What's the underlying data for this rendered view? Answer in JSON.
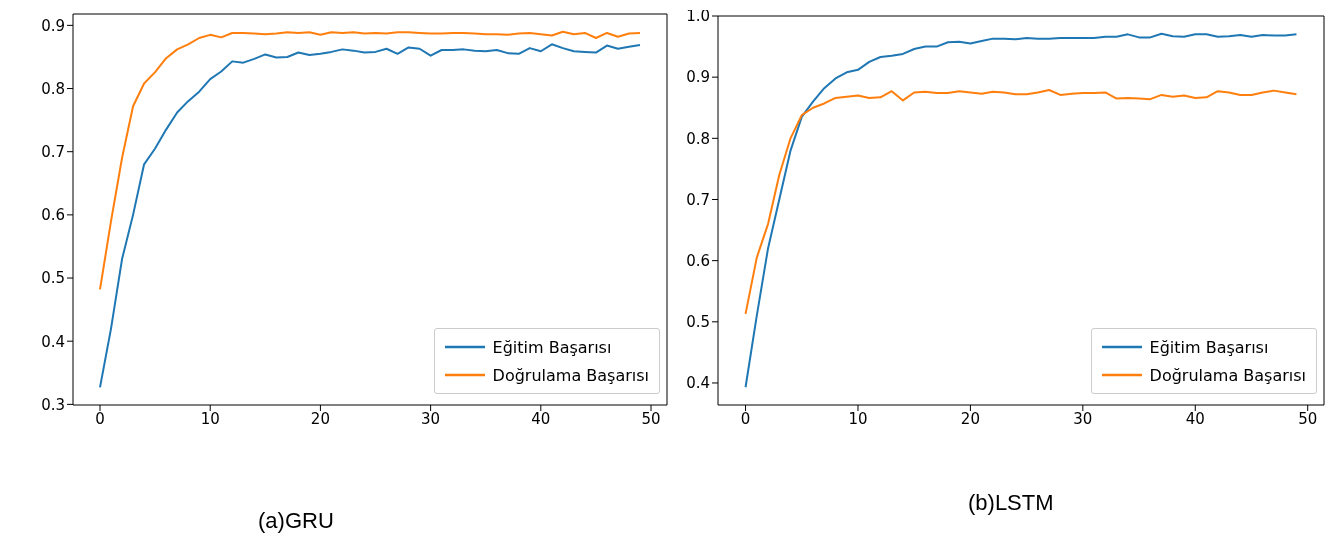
{
  "chart_data": [
    {
      "type": "line",
      "annotations": [
        "(a)GRU"
      ],
      "legend": "bottom right",
      "x": [
        0,
        1,
        2,
        3,
        4,
        5,
        6,
        7,
        8,
        9,
        10,
        11,
        12,
        13,
        14,
        15,
        16,
        17,
        18,
        19,
        20,
        21,
        22,
        23,
        24,
        25,
        26,
        27,
        28,
        29,
        30,
        31,
        32,
        33,
        34,
        35,
        36,
        37,
        38,
        39,
        40,
        41,
        42,
        43,
        44,
        45,
        46,
        47,
        48,
        49
      ],
      "xlim": [
        -2.45,
        51.45
      ],
      "xticks": [
        0,
        10,
        20,
        30,
        40,
        50
      ],
      "ylim": [
        0.299,
        0.918
      ],
      "yticks": [
        0.3,
        0.4,
        0.5,
        0.6,
        0.7,
        0.8,
        0.9
      ],
      "series": [
        {
          "name": "Eğitim Başarısı",
          "color": "#1f77b4",
          "values": [
            0.327,
            0.42,
            0.53,
            0.6,
            0.68,
            0.705,
            0.735,
            0.762,
            0.78,
            0.795,
            0.815,
            0.827,
            0.843,
            0.841,
            0.847,
            0.854,
            0.849,
            0.85,
            0.857,
            0.853,
            0.855,
            0.858,
            0.862,
            0.86,
            0.857,
            0.858,
            0.863,
            0.855,
            0.865,
            0.863,
            0.852,
            0.861,
            0.861,
            0.862,
            0.86,
            0.859,
            0.861,
            0.856,
            0.855,
            0.864,
            0.859,
            0.87,
            0.864,
            0.859,
            0.858,
            0.857,
            0.868,
            0.863,
            0.866,
            0.869
          ]
        },
        {
          "name": "Doğrulama Başarısı",
          "color": "#ff7f0e",
          "values": [
            0.482,
            0.59,
            0.69,
            0.772,
            0.808,
            0.826,
            0.848,
            0.862,
            0.87,
            0.88,
            0.885,
            0.881,
            0.888,
            0.888,
            0.887,
            0.886,
            0.887,
            0.889,
            0.888,
            0.889,
            0.885,
            0.889,
            0.888,
            0.889,
            0.887,
            0.888,
            0.887,
            0.889,
            0.889,
            0.888,
            0.887,
            0.887,
            0.888,
            0.888,
            0.887,
            0.886,
            0.886,
            0.885,
            0.887,
            0.888,
            0.886,
            0.884,
            0.89,
            0.886,
            0.888,
            0.88,
            0.888,
            0.882,
            0.887,
            0.888
          ]
        }
      ]
    },
    {
      "type": "line",
      "annotations": [
        "(b)LSTM"
      ],
      "legend": "bottom right",
      "x": [
        0,
        1,
        2,
        3,
        4,
        5,
        6,
        7,
        8,
        9,
        10,
        11,
        12,
        13,
        14,
        15,
        16,
        17,
        18,
        19,
        20,
        21,
        22,
        23,
        24,
        25,
        26,
        27,
        28,
        29,
        30,
        31,
        32,
        33,
        34,
        35,
        36,
        37,
        38,
        39,
        40,
        41,
        42,
        43,
        44,
        45,
        46,
        47,
        48,
        49
      ],
      "xlim": [
        -2.45,
        51.45
      ],
      "xticks": [
        0,
        10,
        20,
        30,
        40,
        50
      ],
      "ylim": [
        0.364,
        1.0
      ],
      "yticks": [
        0.4,
        0.5,
        0.6,
        0.7,
        0.8,
        0.9,
        {
          "value": 1,
          "label": "1.0"
        }
      ],
      "series": [
        {
          "name": "Eğitim Başarısı",
          "color": "#1f77b4",
          "values": [
            0.393,
            0.51,
            0.62,
            0.7,
            0.78,
            0.835,
            0.86,
            0.882,
            0.898,
            0.908,
            0.912,
            0.925,
            0.933,
            0.935,
            0.938,
            0.946,
            0.95,
            0.95,
            0.957,
            0.958,
            0.955,
            0.959,
            0.963,
            0.963,
            0.962,
            0.964,
            0.963,
            0.963,
            0.964,
            0.964,
            0.964,
            0.964,
            0.966,
            0.966,
            0.97,
            0.965,
            0.965,
            0.971,
            0.967,
            0.966,
            0.97,
            0.97,
            0.966,
            0.967,
            0.969,
            0.966,
            0.969,
            0.968,
            0.968,
            0.97
          ]
        },
        {
          "name": "Doğrulama Başarısı",
          "color": "#ff7f0e",
          "values": [
            0.513,
            0.605,
            0.66,
            0.74,
            0.8,
            0.838,
            0.85,
            0.857,
            0.866,
            0.868,
            0.87,
            0.866,
            0.867,
            0.877,
            0.862,
            0.875,
            0.876,
            0.874,
            0.874,
            0.877,
            0.875,
            0.873,
            0.876,
            0.875,
            0.872,
            0.872,
            0.875,
            0.879,
            0.871,
            0.873,
            0.874,
            0.874,
            0.875,
            0.865,
            0.866,
            0.865,
            0.864,
            0.871,
            0.868,
            0.87,
            0.866,
            0.867,
            0.877,
            0.875,
            0.871,
            0.871,
            0.875,
            0.878,
            0.875,
            0.872
          ]
        }
      ]
    }
  ]
}
